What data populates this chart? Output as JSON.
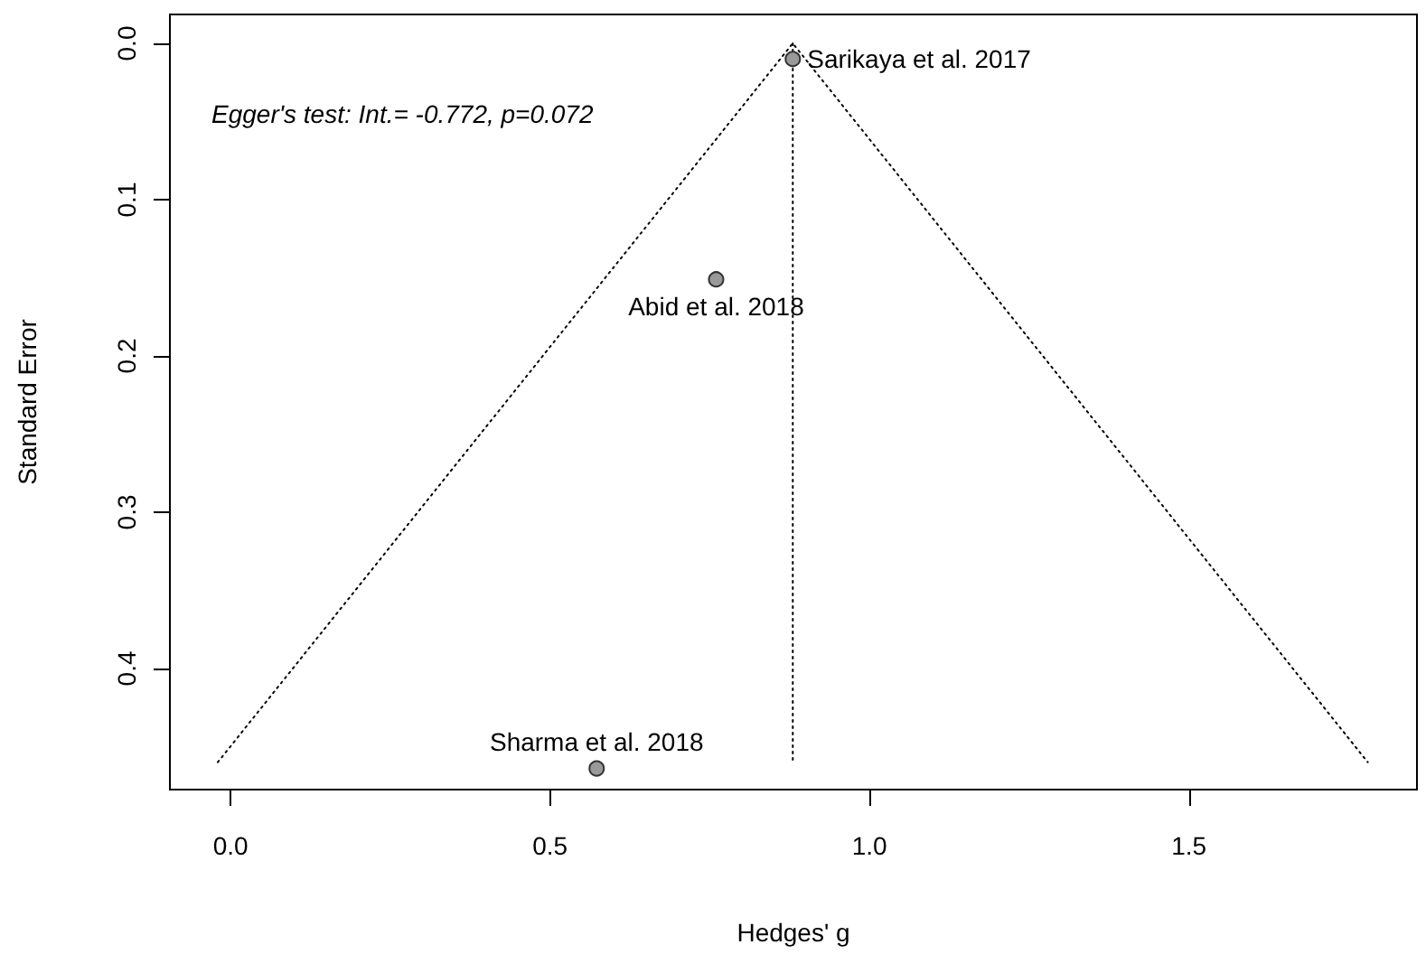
{
  "chart_data": {
    "type": "scatter",
    "xlabel": "Hedges' g",
    "ylabel": "Standard Error",
    "xlim": [
      -0.095,
      1.857
    ],
    "ylim": [
      0.4775,
      -0.0185
    ],
    "xticks": [
      {
        "value": 0,
        "label": "0.0"
      },
      0.5,
      {
        "value": 1,
        "label": "1.0"
      },
      1.5
    ],
    "yticks": [
      {
        "value": 0,
        "label": "0.0"
      },
      0.1,
      0.2,
      0.3,
      0.4
    ],
    "marker": "circle",
    "series": [
      {
        "type": "line",
        "color": "#000000",
        "line_style": "dotted",
        "marker": "none",
        "x": [
          -0.02,
          0.88,
          1.78
        ],
        "values": [
          0.46,
          0,
          0.46
        ]
      },
      {
        "type": "line",
        "color": "#000000",
        "line_style": "dotted",
        "marker": "none",
        "x": [
          0.88,
          0.88
        ],
        "values": [
          0,
          0.46
        ]
      },
      {
        "color": "#999999",
        "x": [
          0.88,
          0.76,
          0.573
        ],
        "values": [
          0.01,
          0.151,
          0.464
        ]
      }
    ],
    "annotations": [
      "Egger's test: Int.= -0.772, p=0.072",
      {
        "text": "Sarikaya et al. 2017",
        "x": 0.88,
        "y": 0.01
      },
      {
        "text": "Abid et al. 2018",
        "x": 0.76,
        "y": 0.151
      },
      {
        "text": "Sharma et al. 2018",
        "x": 0.573,
        "y": 0.464
      }
    ]
  }
}
